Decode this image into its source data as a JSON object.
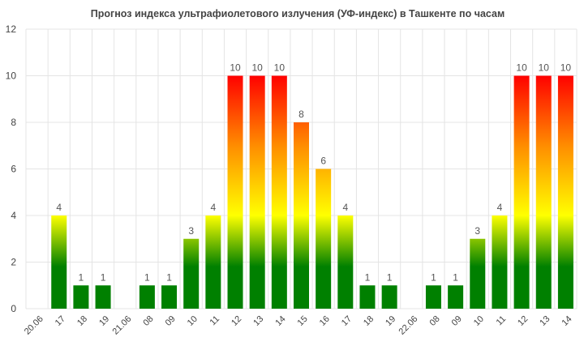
{
  "chart_data": {
    "type": "bar",
    "title": "Прогноз индекса ультрафиолетового излучения (УФ-индекс) в Ташкенте по часам",
    "xlabel": "",
    "ylabel": "",
    "ylim": [
      0,
      12
    ],
    "yticks": [
      0,
      2,
      4,
      6,
      8,
      10,
      12
    ],
    "grid": true,
    "categories": [
      "20.06",
      "17",
      "18",
      "19",
      "21.06",
      "08",
      "09",
      "10",
      "11",
      "12",
      "13",
      "14",
      "15",
      "16",
      "17",
      "18",
      "19",
      "22.06",
      "08",
      "09",
      "10",
      "11",
      "12",
      "13",
      "14"
    ],
    "values": [
      null,
      4,
      1,
      1,
      null,
      1,
      1,
      3,
      4,
      10,
      10,
      10,
      8,
      6,
      4,
      1,
      1,
      null,
      1,
      1,
      3,
      4,
      10,
      10,
      10
    ],
    "data_labels": [
      "",
      "4",
      "1",
      "1",
      "",
      "1",
      "1",
      "3",
      "4",
      "10",
      "10",
      "10",
      "8",
      "6",
      "4",
      "1",
      "1",
      "",
      "1",
      "1",
      "3",
      "4",
      "10",
      "10",
      "10"
    ],
    "bar_gradient": [
      "#ff0000",
      "#ff8c00",
      "#ffff00",
      "#008000"
    ]
  }
}
